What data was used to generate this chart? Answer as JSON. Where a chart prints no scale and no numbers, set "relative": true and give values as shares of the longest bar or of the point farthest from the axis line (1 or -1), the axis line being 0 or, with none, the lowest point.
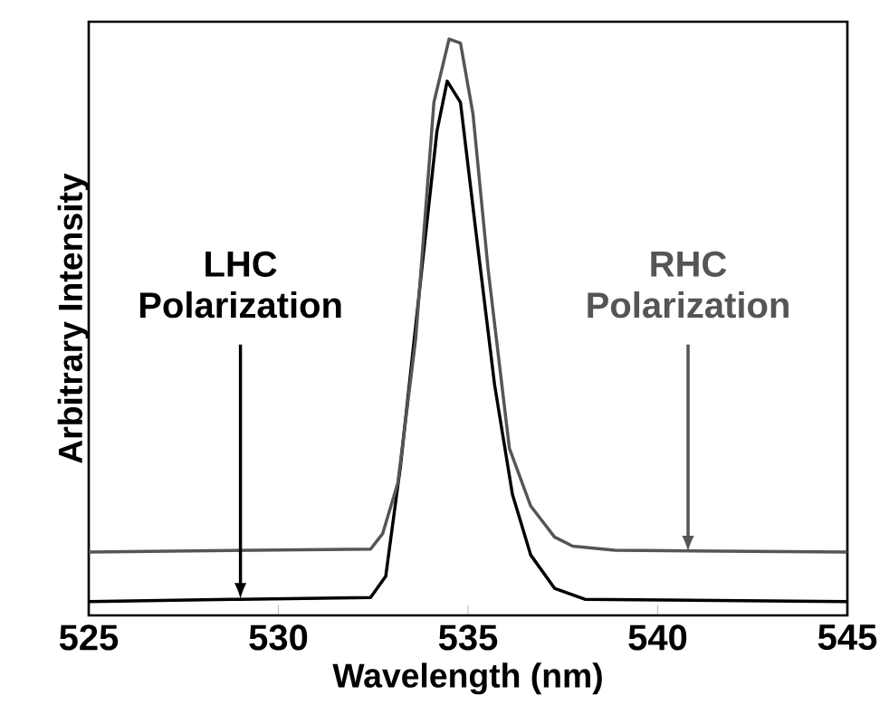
{
  "chart_data": {
    "type": "line",
    "relative": true,
    "xlabel": "Wavelength (nm)",
    "ylabel": "Arbitrary Intensity",
    "xlim": [
      525,
      545
    ],
    "xticks": [
      525,
      530,
      535,
      540,
      545
    ],
    "grid": false,
    "series": [
      {
        "color": "#000000",
        "x": [
          525,
          529.0,
          532.43,
          532.83,
          533.22,
          533.78,
          534.18,
          534.45,
          534.8,
          535.2,
          535.7,
          536.17,
          536.65,
          537.28,
          538.08,
          545
        ],
        "values": [
          0.024,
          0.028,
          0.031,
          0.068,
          0.26,
          0.6,
          0.84,
          0.927,
          0.89,
          0.67,
          0.4,
          0.21,
          0.105,
          0.047,
          0.028,
          0.024
        ]
      },
      {
        "color": "#555555",
        "x": [
          525,
          532.43,
          532.75,
          533.15,
          533.62,
          534.1,
          534.5,
          534.8,
          535.13,
          535.53,
          536.09,
          536.65,
          537.28,
          537.76,
          538.87,
          545
        ],
        "values": [
          0.11,
          0.115,
          0.142,
          0.23,
          0.48,
          0.89,
          1.0,
          0.993,
          0.87,
          0.6,
          0.29,
          0.19,
          0.136,
          0.12,
          0.113,
          0.11
        ]
      }
    ],
    "annotations": [
      {
        "text": "LHC Polarization",
        "x": 529,
        "y": 0.028
      },
      {
        "text": "RHC Polarization",
        "x": 540.8,
        "y": 0.11
      }
    ]
  }
}
